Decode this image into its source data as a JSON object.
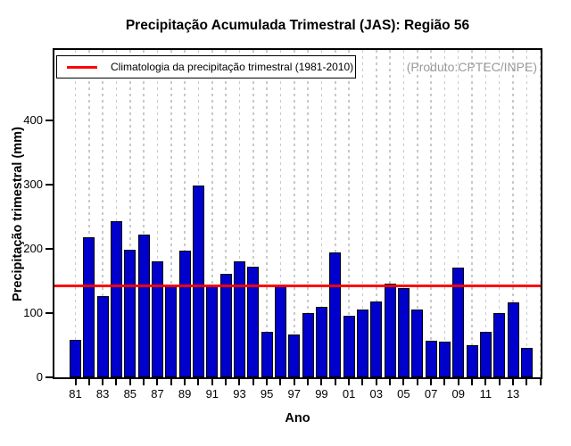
{
  "chart_data": {
    "type": "bar",
    "title": "Precipitação Acumulada Trimestral (JAS): Região 56",
    "xlabel": "Ano",
    "ylabel": "Precipitação trimestral (mm)",
    "legend_label": "Climatologia da precipitação trimestral (1981-2010)",
    "annotation": "(Produto:CPTEC/INPE)",
    "years": [
      1981,
      1982,
      1983,
      1984,
      1985,
      1986,
      1987,
      1988,
      1989,
      1990,
      1991,
      1992,
      1993,
      1994,
      1995,
      1996,
      1997,
      1998,
      1999,
      2000,
      2001,
      2002,
      2003,
      2004,
      2005,
      2006,
      2007,
      2008,
      2009,
      2010,
      2011,
      2012,
      2013,
      2014
    ],
    "categories": [
      "81",
      "82",
      "83",
      "84",
      "85",
      "86",
      "87",
      "88",
      "89",
      "90",
      "91",
      "92",
      "93",
      "94",
      "95",
      "96",
      "97",
      "98",
      "99",
      "00",
      "01",
      "02",
      "03",
      "04",
      "05",
      "06",
      "07",
      "08",
      "09",
      "10",
      "11",
      "12",
      "13",
      "14"
    ],
    "values": [
      58,
      218,
      126,
      243,
      199,
      222,
      180,
      143,
      197,
      298,
      143,
      161,
      180,
      172,
      71,
      142,
      66,
      100,
      109,
      195,
      96,
      106,
      118,
      146,
      139,
      105,
      57,
      56,
      171,
      50,
      71,
      100,
      117,
      46
    ],
    "climatology_value": 142,
    "climatology_period": "1981-2010",
    "ylim": [
      0,
      510
    ],
    "yticks": [
      0,
      100,
      200,
      300,
      400
    ],
    "xtick_labels": [
      "81",
      "83",
      "85",
      "87",
      "89",
      "91",
      "93",
      "95",
      "97",
      "99",
      "01",
      "03",
      "05",
      "07",
      "09",
      "11",
      "13"
    ],
    "grid": "vertical-dashed",
    "legend_position": "top-left",
    "colors": {
      "bar": "#0000CC",
      "bar_border": "#000000",
      "climatology_line": "#FF0000",
      "gridline": "#C9C9C9",
      "annotation_text": "#9A9A9A"
    }
  }
}
